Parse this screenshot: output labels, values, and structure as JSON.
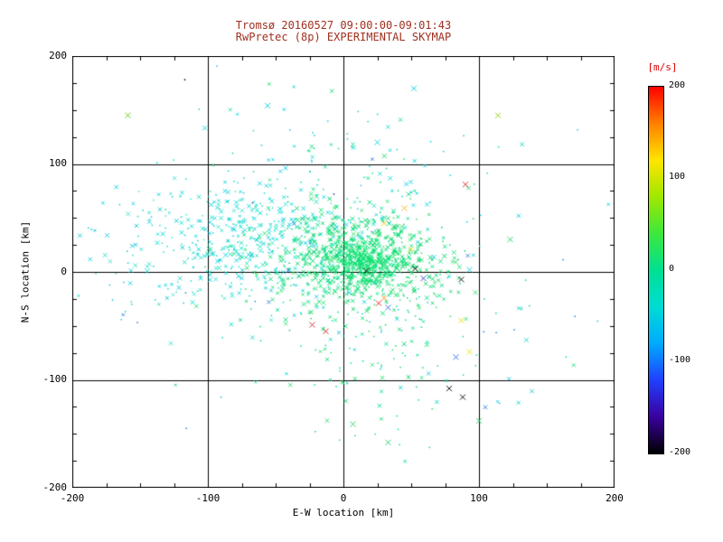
{
  "page": {
    "background": "#ffffff"
  },
  "chart_data": {
    "type": "scatter",
    "title": "Tromsø 20160527 09:00:00-09:01:43",
    "subtitle": "RwPretec (8p) EXPERIMENTAL SKYMAP",
    "title_color": "#a03020",
    "xlabel": "E-W location [km]",
    "ylabel": "N-S location [km]",
    "xlim": [
      -200,
      200
    ],
    "ylim": [
      -200,
      200
    ],
    "xtick_labels": [
      "-200",
      "-100",
      "0",
      "100",
      "200"
    ],
    "ytick_labels": [
      "200",
      "100",
      "0",
      "-100",
      "-200"
    ],
    "grid_values": [
      -100,
      0,
      100
    ],
    "marker": "x",
    "colorbar": {
      "title": "[m/s]",
      "title_color": "#e00000",
      "range": [
        -200,
        200
      ],
      "tick_labels": [
        "200",
        "100",
        "0",
        "-100",
        "-200"
      ],
      "gradient": [
        "#ff0000",
        "#ff8000",
        "#ffe400",
        "#a0e800",
        "#3ce83c",
        "#00e092",
        "#00dcd4",
        "#00aaff",
        "#2040ff",
        "#3a00a0",
        "#000000"
      ]
    },
    "clusters": [
      {
        "name": "west-cyan-cloud",
        "cx": -65,
        "cy": 28,
        "sx": 52,
        "sy": 30,
        "count": 520,
        "dot_fraction": 0.45,
        "size": 2.1,
        "colors": [
          "#00e0cf",
          "#00d4de",
          "#23dec4",
          "#00c9d9",
          "#40e0d0"
        ]
      },
      {
        "name": "central-green-cloud",
        "cx": 12,
        "cy": 12,
        "sx": 34,
        "sy": 27,
        "count": 650,
        "dot_fraction": 0.35,
        "size": 2.1,
        "colors": [
          "#00e070",
          "#16d668",
          "#00db82",
          "#2ee06a",
          "#00cf66"
        ]
      },
      {
        "name": "dense-core",
        "cx": 15,
        "cy": 8,
        "sx": 14,
        "sy": 11,
        "count": 330,
        "dot_fraction": 0.3,
        "size": 1.9,
        "colors": [
          "#00e874",
          "#0fe06a",
          "#00d96e",
          "#25e57c"
        ]
      },
      {
        "name": "south-sparse",
        "cx": 18,
        "cy": -75,
        "sx": 42,
        "sy": 42,
        "count": 115,
        "dot_fraction": 0.5,
        "size": 2.0,
        "colors": [
          "#12d96f",
          "#00dfa0",
          "#2ee06a",
          "#00d4c8"
        ]
      },
      {
        "name": "north-sparse",
        "cx": 5,
        "cy": 105,
        "sx": 55,
        "sy": 28,
        "count": 70,
        "dot_fraction": 0.5,
        "size": 2.0,
        "colors": [
          "#00d8d8",
          "#10dc80",
          "#00cfe8"
        ]
      },
      {
        "name": "wide-scatter",
        "cx": 0,
        "cy": 5,
        "sx": 105,
        "sy": 80,
        "count": 95,
        "dot_fraction": 0.55,
        "size": 2.0,
        "colors": [
          "#00d6c8",
          "#12d96f",
          "#2e7fe0",
          "#19c3de",
          "#20d96a"
        ]
      }
    ],
    "outliers": [
      {
        "x": -117,
        "y": 178,
        "color": "#000000",
        "style": "dot"
      },
      {
        "x": -159,
        "y": 145,
        "color": "#55cc00",
        "style": "x"
      },
      {
        "x": -56,
        "y": 154,
        "color": "#00cfe0",
        "style": "x"
      },
      {
        "x": 25,
        "y": 120,
        "color": "#00cfe0",
        "style": "x"
      },
      {
        "x": 52,
        "y": 170,
        "color": "#00cfe0",
        "style": "x"
      },
      {
        "x": 114,
        "y": 145,
        "color": "#88d400",
        "style": "x"
      },
      {
        "x": 90,
        "y": 81,
        "color": "#e02020",
        "style": "x"
      },
      {
        "x": 123,
        "y": 30,
        "color": "#18d060",
        "style": "x"
      },
      {
        "x": -67,
        "y": 64,
        "color": "#103090",
        "style": "dot"
      },
      {
        "x": -7,
        "y": 72,
        "color": "#103090",
        "style": "dot"
      },
      {
        "x": 45,
        "y": 59,
        "color": "#ffaa00",
        "style": "x"
      },
      {
        "x": 30,
        "y": 45,
        "color": "#d8d800",
        "style": "x"
      },
      {
        "x": 50,
        "y": 21,
        "color": "#e8e000",
        "style": "x"
      },
      {
        "x": 17,
        "y": 1,
        "color": "#000000",
        "style": "x"
      },
      {
        "x": 53,
        "y": 3,
        "color": "#000000",
        "style": "x"
      },
      {
        "x": 87,
        "y": -7,
        "color": "#000000",
        "style": "x"
      },
      {
        "x": 93,
        "y": 2,
        "color": "#00cfe0",
        "style": "x"
      },
      {
        "x": 26,
        "y": -29,
        "color": "#e02020",
        "style": "x"
      },
      {
        "x": 30,
        "y": -24,
        "color": "#ff8800",
        "style": "x"
      },
      {
        "x": 59,
        "y": -6,
        "color": "#2244cc",
        "style": "x"
      },
      {
        "x": 33,
        "y": -33,
        "color": "#2266ee",
        "style": "x"
      },
      {
        "x": -13,
        "y": -55,
        "color": "#cc2020",
        "style": "x"
      },
      {
        "x": -23,
        "y": -49,
        "color": "#cc2020",
        "style": "x"
      },
      {
        "x": 87,
        "y": -45,
        "color": "#e0e000",
        "style": "x"
      },
      {
        "x": 93,
        "y": -74,
        "color": "#e0e000",
        "style": "x"
      },
      {
        "x": 83,
        "y": -79,
        "color": "#2266ee",
        "style": "x"
      },
      {
        "x": 78,
        "y": -108,
        "color": "#000000",
        "style": "x"
      },
      {
        "x": 88,
        "y": -116,
        "color": "#000000",
        "style": "x"
      },
      {
        "x": 33,
        "y": -158,
        "color": "#18d060",
        "style": "x"
      },
      {
        "x": 7,
        "y": -141,
        "color": "#18d060",
        "style": "x"
      },
      {
        "x": 100,
        "y": -138,
        "color": "#18d060",
        "style": "x"
      }
    ]
  }
}
